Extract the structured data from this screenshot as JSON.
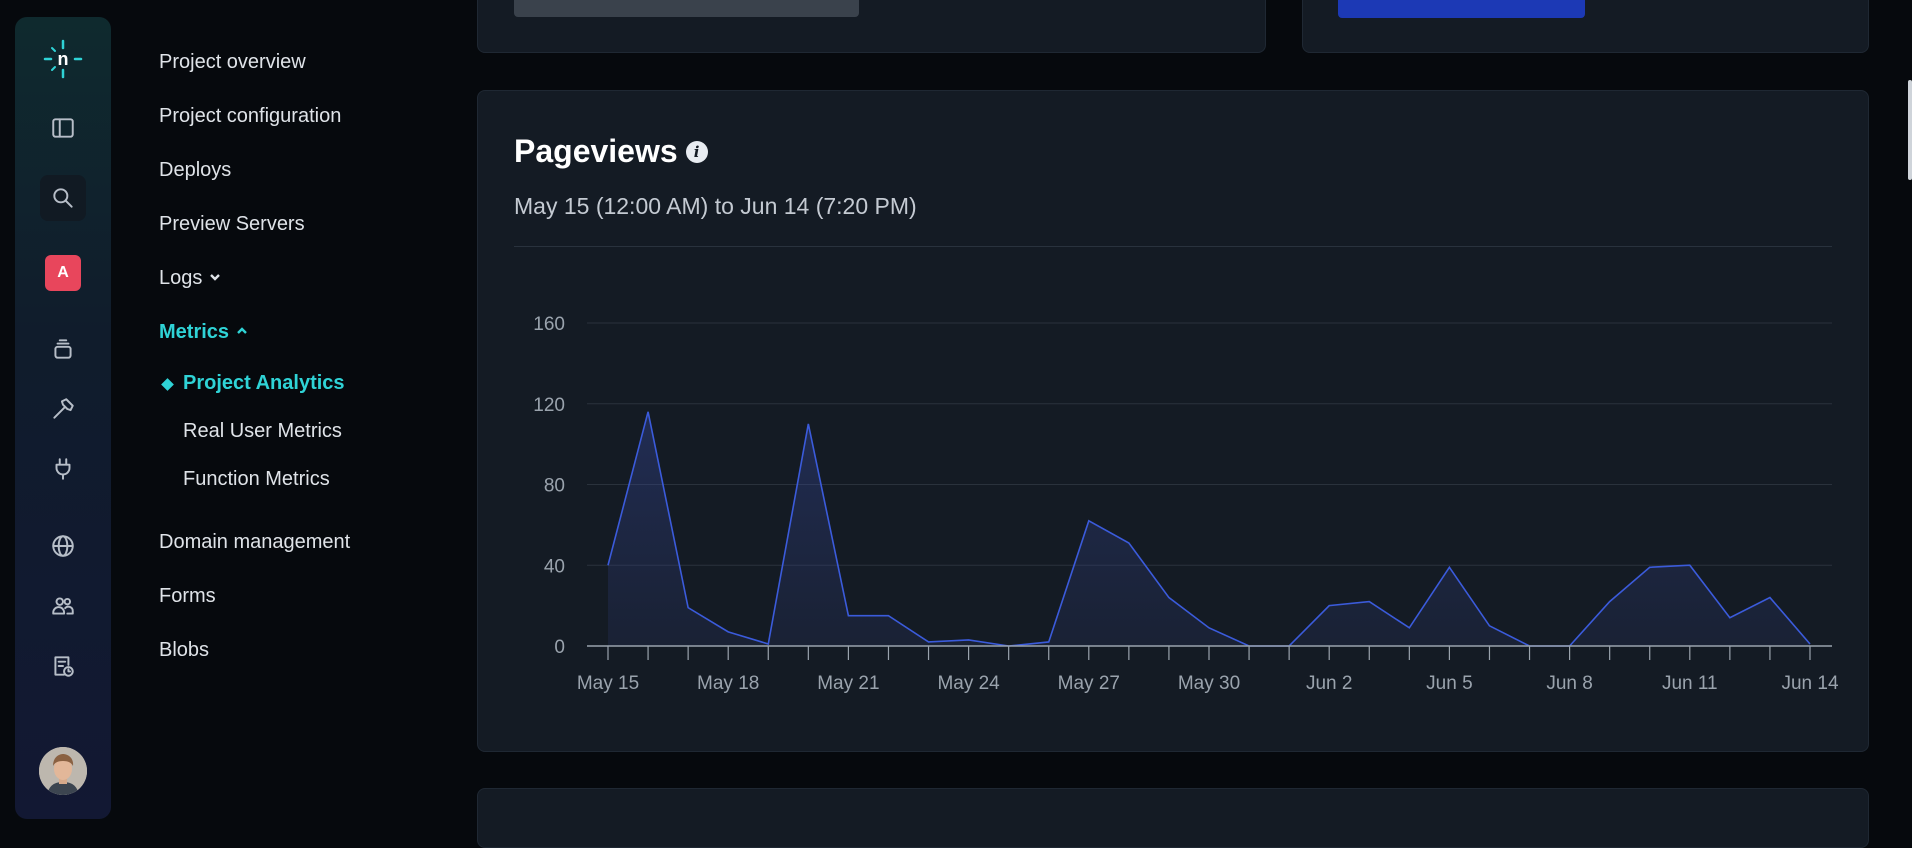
{
  "sidebar_rail": {
    "logo": "n",
    "team_badge": "A",
    "icons": [
      "netlify-logo-icon",
      "panel-toggle-icon",
      "search-icon",
      "team-badge",
      "layers-icon",
      "hammer-icon",
      "plug-icon",
      "globe-icon",
      "team-members-icon",
      "billing-icon",
      "avatar"
    ]
  },
  "nav": {
    "items": [
      {
        "label": "Project overview"
      },
      {
        "label": "Project configuration"
      },
      {
        "label": "Deploys"
      },
      {
        "label": "Preview Servers"
      },
      {
        "label": "Logs"
      },
      {
        "label": "Metrics"
      },
      {
        "label": "Project Analytics"
      },
      {
        "label": "Real User Metrics"
      },
      {
        "label": "Function Metrics"
      },
      {
        "label": "Domain management"
      },
      {
        "label": "Forms"
      },
      {
        "label": "Blobs"
      }
    ]
  },
  "pageviews": {
    "title": "Pageviews",
    "info_icon": "i",
    "range": "May 15 (12:00 AM) to Jun 14 (7:20 PM)"
  },
  "colors": {
    "accent": "#2fd3d6",
    "series": "#3b5bdb",
    "card": "#141b24"
  },
  "chart_data": {
    "type": "area",
    "title": "Pageviews",
    "x": [
      "May 15",
      "May 16",
      "May 17",
      "May 18",
      "May 19",
      "May 20",
      "May 21",
      "May 22",
      "May 23",
      "May 24",
      "May 25",
      "May 26",
      "May 27",
      "May 28",
      "May 29",
      "May 30",
      "May 31",
      "Jun 1",
      "Jun 2",
      "Jun 3",
      "Jun 4",
      "Jun 5",
      "Jun 6",
      "Jun 7",
      "Jun 8",
      "Jun 9",
      "Jun 10",
      "Jun 11",
      "Jun 12",
      "Jun 13",
      "Jun 14"
    ],
    "values": [
      40,
      116,
      19,
      7,
      1,
      110,
      15,
      15,
      2,
      3,
      0,
      2,
      62,
      51,
      24,
      9,
      0,
      0,
      20,
      22,
      9,
      39,
      10,
      0,
      0,
      22,
      39,
      40,
      14,
      24,
      1
    ],
    "tick_labels": [
      "May 15",
      "May 18",
      "May 21",
      "May 24",
      "May 27",
      "May 30",
      "Jun 2",
      "Jun 5",
      "Jun 8",
      "Jun 11",
      "Jun 14"
    ],
    "yticks": [
      "0",
      "40",
      "80",
      "120",
      "160"
    ],
    "ylim": [
      0,
      160
    ],
    "grid": true
  }
}
